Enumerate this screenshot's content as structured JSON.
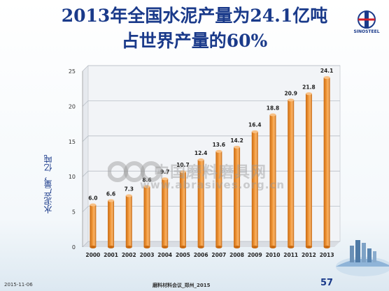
{
  "title": {
    "line1": "2013年全国水泥产量为24.1亿吨",
    "line2": "占世界产量的60%"
  },
  "logo": {
    "text": "SINOSTEEL"
  },
  "watermark": {
    "text": "中国磨料磨具网",
    "url": "www.abrasives.org.cn"
  },
  "footer": {
    "date": "2015-11-06",
    "event": "磨料材料会议_郑州_2015",
    "page": "57"
  },
  "colors": {
    "bar": "#f39a3c",
    "bar_dark": "#c96a12",
    "title": "#1a3a8a"
  },
  "chart_data": {
    "type": "bar",
    "categories": [
      "2000",
      "2001",
      "2002",
      "2003",
      "2004",
      "2005",
      "2006",
      "2007",
      "2008",
      "2009",
      "2010",
      "2011",
      "2012",
      "2013"
    ],
    "values": [
      6.0,
      6.6,
      7.3,
      8.6,
      9.7,
      10.7,
      12.4,
      13.6,
      14.2,
      16.4,
      18.8,
      20.9,
      21.8,
      24.1
    ],
    "data_labels": [
      "6.0",
      "6.6",
      "7.3",
      "8.6",
      "9.7",
      "10.7",
      "12.4",
      "13.6",
      "14.2",
      "16.4",
      "18.8",
      "20.9",
      "21.8",
      "24.1"
    ],
    "ylabel": "水泥产量，亿吨",
    "xlabel": "",
    "ylim": [
      0,
      25
    ],
    "yticks": [
      0,
      5,
      10,
      15,
      20,
      25
    ],
    "grid": true,
    "legend": "none"
  }
}
